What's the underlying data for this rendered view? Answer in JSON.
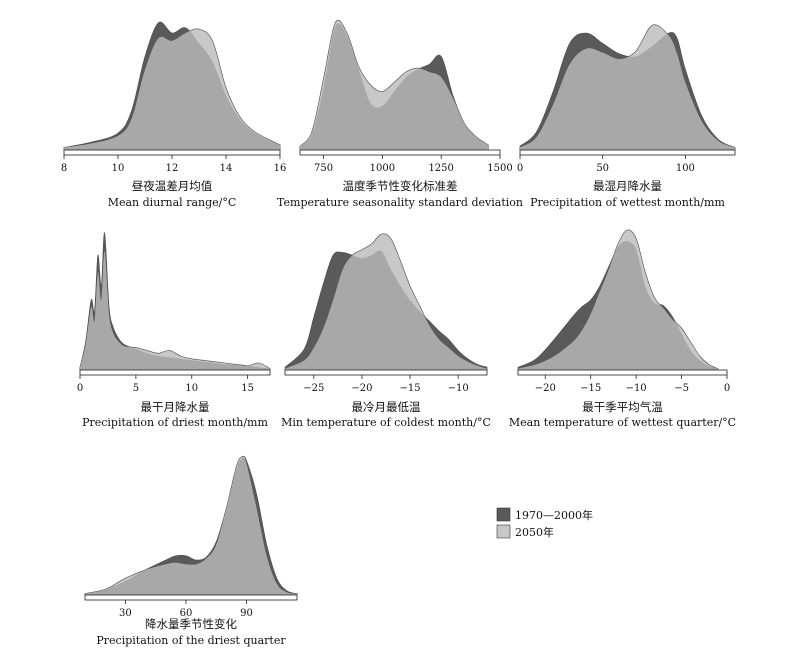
{
  "legend": {
    "items": [
      {
        "label": "1970—2000年",
        "color": "#5a5a5a"
      },
      {
        "label": "2050年",
        "color": "#c8c8c8"
      }
    ]
  },
  "chart_data": [
    {
      "type": "area",
      "title": "昼夜温差月均值",
      "xlabel": "Mean diurnal range/°C",
      "xlim": [
        8,
        16
      ],
      "xticks": [
        8,
        10,
        12,
        14,
        16
      ],
      "series": [
        {
          "name": "1970—2000年",
          "x": [
            8,
            9,
            10,
            10.5,
            11,
            11.5,
            12,
            12.5,
            13,
            13.5,
            14,
            14.5,
            15,
            15.5,
            16
          ],
          "y": [
            0.02,
            0.06,
            0.13,
            0.3,
            0.72,
            0.98,
            0.9,
            0.94,
            0.82,
            0.68,
            0.42,
            0.24,
            0.14,
            0.08,
            0.04
          ]
        },
        {
          "name": "2050年",
          "x": [
            8,
            9,
            10,
            10.5,
            11,
            11.5,
            12,
            12.5,
            13,
            13.5,
            14,
            14.5,
            15,
            15.5,
            16
          ],
          "y": [
            0.02,
            0.05,
            0.11,
            0.24,
            0.62,
            0.86,
            0.84,
            0.9,
            0.93,
            0.84,
            0.48,
            0.26,
            0.15,
            0.09,
            0.04
          ]
        }
      ]
    },
    {
      "type": "area",
      "title": "温度季节性变化标准差",
      "xlabel": "Temperature seasonality standard deviation",
      "xlim": [
        650,
        1500
      ],
      "xticks": [
        750,
        1000,
        1250,
        1500
      ],
      "series": [
        {
          "name": "1970—2000年",
          "x": [
            650,
            700,
            750,
            800,
            850,
            900,
            950,
            1000,
            1050,
            1100,
            1150,
            1200,
            1250,
            1300,
            1350,
            1400,
            1450
          ],
          "y": [
            0.03,
            0.12,
            0.48,
            0.95,
            0.88,
            0.62,
            0.36,
            0.34,
            0.45,
            0.56,
            0.62,
            0.66,
            0.72,
            0.42,
            0.2,
            0.1,
            0.04
          ]
        },
        {
          "name": "2050年",
          "x": [
            650,
            700,
            750,
            800,
            850,
            900,
            950,
            1000,
            1050,
            1100,
            1150,
            1200,
            1250,
            1300,
            1350,
            1400,
            1450
          ],
          "y": [
            0.03,
            0.14,
            0.55,
            0.98,
            0.9,
            0.64,
            0.5,
            0.45,
            0.52,
            0.6,
            0.63,
            0.6,
            0.56,
            0.4,
            0.2,
            0.1,
            0.04
          ]
        }
      ]
    },
    {
      "type": "area",
      "title": "最湿月降水量",
      "xlabel": "Precipitation of wettest month/mm",
      "xlim": [
        0,
        130
      ],
      "xticks": [
        0,
        50,
        100
      ],
      "series": [
        {
          "name": "1970—2000年",
          "x": [
            0,
            10,
            20,
            30,
            40,
            50,
            60,
            70,
            80,
            90,
            95,
            100,
            110,
            120,
            130
          ],
          "y": [
            0.03,
            0.14,
            0.45,
            0.82,
            0.9,
            0.82,
            0.74,
            0.72,
            0.8,
            0.9,
            0.86,
            0.62,
            0.26,
            0.08,
            0.02
          ]
        },
        {
          "name": "2050年",
          "x": [
            0,
            10,
            20,
            30,
            40,
            50,
            60,
            70,
            80,
            90,
            95,
            100,
            110,
            120,
            130
          ],
          "y": [
            0.02,
            0.1,
            0.35,
            0.66,
            0.78,
            0.75,
            0.7,
            0.76,
            0.96,
            0.88,
            0.74,
            0.52,
            0.22,
            0.07,
            0.02
          ]
        }
      ]
    },
    {
      "type": "area",
      "title": "最干月降水量",
      "xlabel": "Precipitation of driest month/mm",
      "xlim": [
        0,
        17
      ],
      "xticks": [
        0,
        5,
        10,
        15
      ],
      "series": [
        {
          "name": "1970—2000年",
          "x": [
            0,
            0.5,
            1,
            1.3,
            1.6,
            1.9,
            2.2,
            2.6,
            3,
            3.5,
            4,
            5,
            6,
            7,
            8,
            9,
            10,
            11,
            12,
            13,
            14,
            15,
            16,
            17
          ],
          "y": [
            0.02,
            0.2,
            0.5,
            0.42,
            0.82,
            0.6,
            0.98,
            0.45,
            0.3,
            0.22,
            0.18,
            0.15,
            0.12,
            0.1,
            0.09,
            0.08,
            0.07,
            0.06,
            0.05,
            0.04,
            0.04,
            0.03,
            0.02,
            0.01
          ]
        },
        {
          "name": "2050年",
          "x": [
            0,
            0.5,
            1,
            1.3,
            1.6,
            1.9,
            2.2,
            2.6,
            3,
            3.5,
            4,
            5,
            6,
            7,
            8,
            9,
            10,
            11,
            12,
            13,
            14,
            15,
            16,
            17
          ],
          "y": [
            0.02,
            0.18,
            0.45,
            0.35,
            0.7,
            0.5,
            0.85,
            0.4,
            0.26,
            0.2,
            0.17,
            0.16,
            0.14,
            0.12,
            0.14,
            0.1,
            0.08,
            0.07,
            0.06,
            0.05,
            0.04,
            0.03,
            0.05,
            0.01
          ]
        }
      ]
    },
    {
      "type": "area",
      "title": "最冷月最低温",
      "xlabel": "Min temperature of coldest month/°C",
      "xlim": [
        -28,
        -7
      ],
      "xticks": [
        -25,
        -20,
        -15,
        -10
      ],
      "series": [
        {
          "name": "1970—2000年",
          "x": [
            -28,
            -26,
            -25,
            -24,
            -23,
            -22,
            -21,
            -20,
            -19,
            -18,
            -17,
            -16,
            -15,
            -14,
            -13,
            -12,
            -11,
            -10,
            -9,
            -8,
            -7
          ],
          "y": [
            0.02,
            0.15,
            0.38,
            0.62,
            0.82,
            0.84,
            0.82,
            0.8,
            0.82,
            0.85,
            0.72,
            0.6,
            0.5,
            0.42,
            0.35,
            0.28,
            0.22,
            0.14,
            0.08,
            0.04,
            0.02
          ]
        },
        {
          "name": "2050年",
          "x": [
            -28,
            -26,
            -25,
            -24,
            -23,
            -22,
            -21,
            -20,
            -19,
            -18,
            -17,
            -16,
            -15,
            -14,
            -13,
            -12,
            -11,
            -10,
            -9,
            -8,
            -7
          ],
          "y": [
            0.01,
            0.07,
            0.16,
            0.3,
            0.5,
            0.72,
            0.82,
            0.86,
            0.9,
            0.97,
            0.94,
            0.78,
            0.6,
            0.46,
            0.32,
            0.22,
            0.16,
            0.1,
            0.06,
            0.03,
            0.01
          ]
        }
      ]
    },
    {
      "type": "area",
      "title": "最干季平均气温",
      "xlabel": "Mean temperature of wettest quarter/°C",
      "xlim": [
        -23,
        0
      ],
      "xticks": [
        -20,
        -15,
        -10,
        -5,
        0
      ],
      "series": [
        {
          "name": "1970—2000年",
          "x": [
            -23,
            -21,
            -19,
            -17,
            -16,
            -15,
            -14,
            -13,
            -12,
            -11,
            -10,
            -9,
            -8,
            -7,
            -6,
            -5,
            -4,
            -3,
            -2,
            -1
          ],
          "y": [
            0.02,
            0.08,
            0.22,
            0.38,
            0.45,
            0.5,
            0.6,
            0.74,
            0.88,
            0.92,
            0.86,
            0.6,
            0.48,
            0.46,
            0.38,
            0.26,
            0.14,
            0.07,
            0.03,
            0.01
          ]
        },
        {
          "name": "2050年",
          "x": [
            -23,
            -21,
            -19,
            -17,
            -16,
            -15,
            -14,
            -13,
            -12,
            -11,
            -10,
            -9,
            -8,
            -7,
            -6,
            -5,
            -4,
            -3,
            -2,
            -1
          ],
          "y": [
            0.01,
            0.04,
            0.1,
            0.2,
            0.28,
            0.4,
            0.56,
            0.72,
            0.9,
            1.0,
            0.94,
            0.7,
            0.52,
            0.44,
            0.36,
            0.3,
            0.2,
            0.1,
            0.04,
            0.01
          ]
        }
      ]
    },
    {
      "type": "area",
      "title": "降水量季节性变化",
      "xlabel": "Precipitation of the driest quarter",
      "xlim": [
        10,
        115
      ],
      "xticks": [
        30,
        60,
        90
      ],
      "series": [
        {
          "name": "1970—2000年",
          "x": [
            10,
            20,
            30,
            40,
            50,
            55,
            60,
            65,
            70,
            75,
            80,
            85,
            88,
            90,
            95,
            100,
            105,
            110,
            115
          ],
          "y": [
            0.01,
            0.04,
            0.1,
            0.18,
            0.25,
            0.28,
            0.28,
            0.25,
            0.27,
            0.38,
            0.62,
            0.9,
            0.98,
            0.96,
            0.72,
            0.36,
            0.12,
            0.03,
            0.01
          ]
        },
        {
          "name": "2050年",
          "x": [
            10,
            20,
            30,
            40,
            50,
            55,
            60,
            65,
            70,
            75,
            80,
            85,
            88,
            90,
            95,
            100,
            105,
            110,
            115
          ],
          "y": [
            0.01,
            0.04,
            0.12,
            0.18,
            0.22,
            0.23,
            0.22,
            0.22,
            0.26,
            0.36,
            0.62,
            0.92,
            0.99,
            0.94,
            0.62,
            0.28,
            0.08,
            0.02,
            0.01
          ]
        }
      ]
    }
  ]
}
